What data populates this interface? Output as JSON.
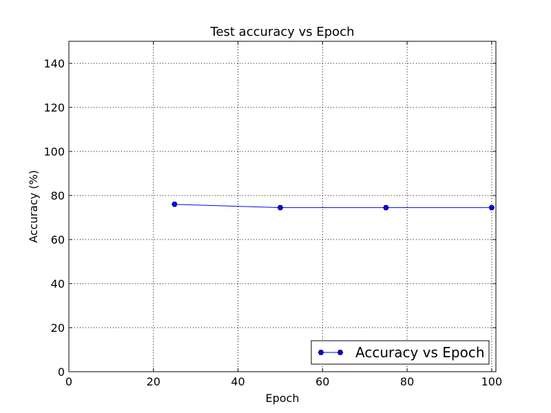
{
  "chart_data": {
    "type": "line",
    "title": "Test accuracy vs Epoch",
    "xlabel": "Epoch",
    "ylabel": "Accuracy (%)",
    "xlim": [
      0,
      101
    ],
    "ylim": [
      0,
      150
    ],
    "xticks": [
      0,
      20,
      40,
      60,
      80,
      100
    ],
    "yticks": [
      0,
      20,
      40,
      60,
      80,
      100,
      120,
      140
    ],
    "grid": true,
    "legend_position": "bottom-right",
    "series": [
      {
        "name": "Accuracy vs Epoch",
        "color": "#0000ff",
        "marker": "hexagon",
        "x": [
          25,
          50,
          75,
          100
        ],
        "y": [
          76,
          74.5,
          74.5,
          74.5
        ]
      }
    ]
  }
}
